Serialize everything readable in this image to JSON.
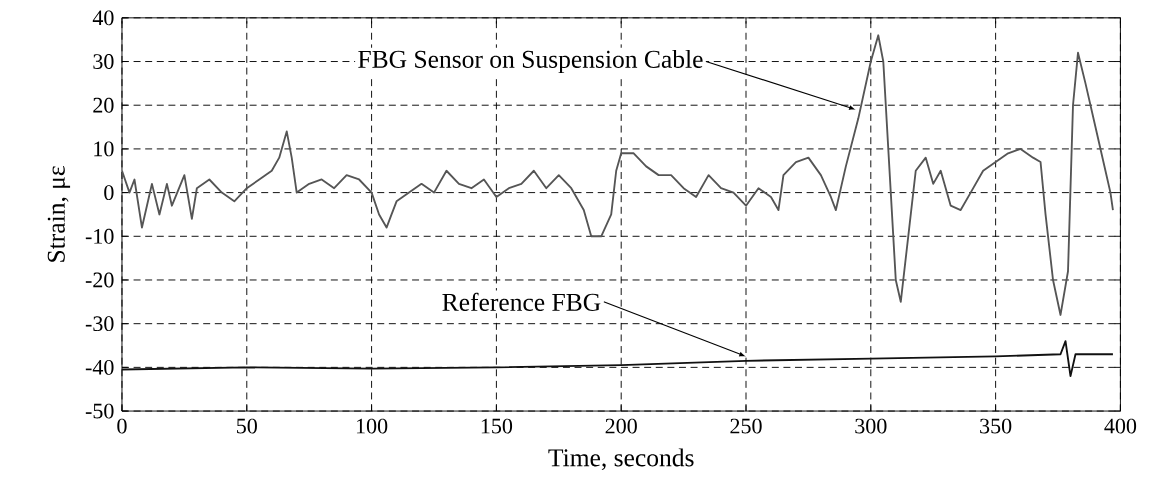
{
  "chart_data": {
    "type": "line",
    "xlabel": "Time, seconds",
    "ylabel": "Strain, με",
    "xlim": [
      0,
      400
    ],
    "ylim": [
      -50,
      40
    ],
    "xticks": [
      0,
      50,
      100,
      150,
      200,
      250,
      300,
      350,
      400
    ],
    "yticks": [
      -50,
      -40,
      -30,
      -20,
      -10,
      0,
      10,
      20,
      30,
      40
    ],
    "grid": true,
    "marker": "none",
    "line_style": "solid",
    "series": [
      {
        "color": "#555555",
        "x": [
          0,
          3,
          5,
          8,
          10,
          12,
          15,
          18,
          20,
          25,
          28,
          30,
          35,
          40,
          45,
          50,
          55,
          60,
          63,
          66,
          68,
          70,
          75,
          80,
          85,
          90,
          95,
          100,
          103,
          106,
          108,
          110,
          115,
          120,
          125,
          130,
          135,
          140,
          145,
          150,
          155,
          160,
          165,
          170,
          175,
          180,
          185,
          188,
          192,
          196,
          198,
          200,
          205,
          210,
          215,
          220,
          225,
          230,
          235,
          240,
          245,
          250,
          255,
          260,
          263,
          265,
          270,
          275,
          280,
          284,
          286,
          290,
          295,
          300,
          303,
          305,
          308,
          310,
          312,
          315,
          318,
          322,
          325,
          328,
          332,
          336,
          340,
          345,
          350,
          355,
          360,
          365,
          368,
          370,
          373,
          376,
          379,
          381,
          383,
          386,
          390,
          394,
          396,
          397
        ],
        "values": [
          5,
          0,
          3,
          -8,
          -3,
          2,
          -5,
          2,
          -3,
          4,
          -6,
          1,
          3,
          0,
          -2,
          1,
          3,
          5,
          8,
          14,
          8,
          0,
          2,
          3,
          1,
          4,
          3,
          0,
          -5,
          -8,
          -5,
          -2,
          0,
          2,
          0,
          5,
          2,
          1,
          3,
          -1,
          1,
          2,
          5,
          1,
          4,
          1,
          -4,
          -10,
          -10,
          -5,
          5,
          9,
          9,
          6,
          4,
          4,
          1,
          -1,
          4,
          1,
          0,
          -3,
          1,
          -1,
          -4,
          4,
          7,
          8,
          4,
          -1,
          -4,
          6,
          17,
          30,
          36,
          30,
          0,
          -20,
          -25,
          -10,
          5,
          8,
          2,
          5,
          -3,
          -4,
          0,
          5,
          7,
          9,
          10,
          8,
          7,
          -5,
          -20,
          -28,
          -18,
          20,
          32,
          25,
          15,
          5,
          0,
          -4
        ]
      },
      {
        "color": "#111111",
        "x": [
          0,
          50,
          100,
          150,
          200,
          250,
          300,
          350,
          376,
          378,
          380,
          382,
          397
        ],
        "values": [
          -40.5,
          -40,
          -40.3,
          -40,
          -39.5,
          -38.5,
          -38,
          -37.5,
          -37,
          -34,
          -42,
          -37,
          -37
        ]
      }
    ],
    "annotations": [
      {
        "text": "FBG Sensor on Suspension Cable",
        "x": 294,
        "y": 19
      },
      {
        "text": "Reference FBG",
        "x": 250,
        "y": -37.5
      }
    ]
  }
}
